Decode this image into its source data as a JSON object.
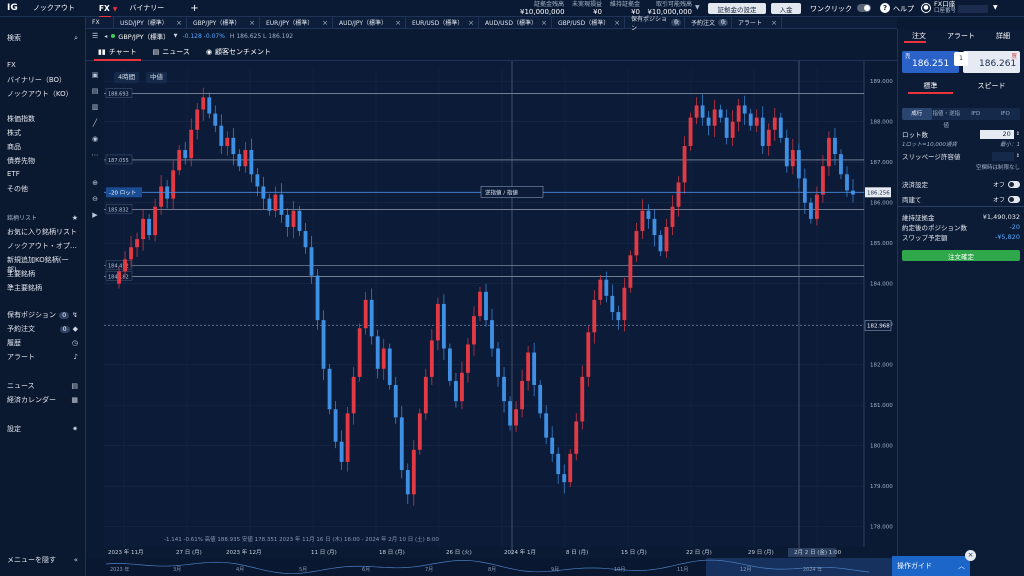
{
  "top": {
    "logo": "IG",
    "knockout": "ノックアウト",
    "fx": "FX",
    "binary": "バイナリー",
    "plus": "+",
    "acct_labels": [
      "証拠金残高",
      "未実現損益",
      "維持証拠金",
      "取引可能残高"
    ],
    "acct_values": [
      "¥10,000,000",
      "¥0",
      "¥0",
      "¥10,000,000"
    ],
    "margin_settings": "証拠金の設定",
    "deposit": "入金",
    "oneclick": "ワンクリック",
    "help": "ヘルプ",
    "account_label": "FX口座",
    "account_sub": "口座番号"
  },
  "tabs": [
    {
      "label": "FX"
    },
    {
      "label": "USD/JPY（標準）"
    },
    {
      "label": "GBP/JPY（標準）"
    },
    {
      "label": "EUR/JPY（標準）"
    },
    {
      "label": "AUD/JPY（標準）"
    },
    {
      "label": "EUR/USD（標準）"
    },
    {
      "label": "AUD/USD（標準）"
    },
    {
      "label": "GBP/USD（標準）"
    },
    {
      "label": "保有ポジション",
      "count": "0"
    },
    {
      "label": "予約注文",
      "count": "0"
    },
    {
      "label": "アラート"
    }
  ],
  "instrument": {
    "name": "GBP/JPY（標準）",
    "change": "-0.128  -0.07%",
    "hl": "H 186.625  L 186.192"
  },
  "subtabs": {
    "chart": "チャート",
    "news": "ニュース",
    "sentiment": "顧客センチメント"
  },
  "chart_controls": {
    "timeframe": "4時間",
    "type": "中値"
  },
  "sidebar": {
    "search": "検索",
    "fx": "FX",
    "binary": "バイナリー（BO）",
    "knockout": "ノックアウト（KO）",
    "stockindex": "株価指数",
    "stock": "株式",
    "commodity": "商品",
    "bond": "債券先物",
    "etf": "ETF",
    "other": "その他",
    "watch_head": "銘柄リスト",
    "fav": "お気に入り銘柄リスト",
    "ko_op": "ノックアウト・オプ…",
    "new_ko": "新規追加KO銘柄(一部)",
    "main": "主要銘柄",
    "sub": "準主要銘柄",
    "positions": "保有ポジション",
    "positions_count": "0",
    "orders": "予約注文",
    "orders_count": "0",
    "history": "履歴",
    "alert": "アラート",
    "news": "ニュース",
    "calendar": "経済カレンダー",
    "settings": "設定",
    "hide_menu": "メニューを隠す"
  },
  "right": {
    "tab_order": "注文",
    "tab_alert": "アラート",
    "tab_detail": "詳細",
    "sell_label": "売",
    "buy_label": "買",
    "sell_price": "186.251",
    "buy_price": "186.261",
    "spread": "1",
    "mode_std": "標準",
    "mode_speed": "スピード",
    "order_types": [
      "成行",
      "指値・逆指値",
      "IFD",
      "IFO"
    ],
    "lot_label": "ロット数",
    "lot_value": "20",
    "lot_hint": "1ロット=10,000通貨",
    "lot_min": "最小：1",
    "slippage_label": "スリッページ許容値",
    "slippage_hint": "空欄時は制限なし",
    "settle_label": "決済設定",
    "settle_value": "オフ",
    "both_label": "両建て",
    "both_value": "オフ",
    "margin_label": "維持証拠金",
    "margin_value": "¥1,490,032",
    "pos_label": "約定後のポジション数",
    "pos_value": "-20",
    "swap_label": "スワップ予定額",
    "swap_value": "-¥5,820",
    "confirm": "注文確定",
    "guide": "操作ガイド"
  },
  "chart_data": {
    "type": "candlestick",
    "price_ticks": [
      "189.000",
      "188.000",
      "187.000",
      "186.000",
      "185.000",
      "184.000",
      "183.000",
      "182.000",
      "181.000",
      "180.000",
      "179.000",
      "178.000"
    ],
    "levels": [
      {
        "label": "188.693",
        "value": 188.693
      },
      {
        "label": "187.055",
        "value": 187.055
      },
      {
        "label": "185.832",
        "value": 185.832
      },
      {
        "label": "184.452",
        "value": 184.452
      },
      {
        "label": "184.182",
        "value": 184.182
      }
    ],
    "current_price": "186.256",
    "current_value": 186.256,
    "dashed_price": "182.968",
    "dashed_value": 182.968,
    "position_tag": "-20 ロット",
    "position_center": "逆指値 / 指値",
    "x_labels": [
      "2023 年 11月",
      "27 日 (月)",
      "2023 年 12月",
      "11 日 (月)",
      "18 日 (月)",
      "26 日 (火)",
      "2024 年 1月",
      "8 日 (月)",
      "15 日 (月)",
      "22 日 (月)",
      "29 日 (月)",
      "2月 2 日 (金) 1:00"
    ],
    "nav_labels": [
      "2023 年",
      "3月",
      "4月",
      "5月",
      "6月",
      "7月",
      "8月",
      "9月",
      "10月",
      "11月",
      "12月",
      "2024 年"
    ],
    "footer_stats": "-1.141  -0.61%  高値 188.935  安値 178.351  2023 年 11月 16 日 (木) 16:00 - 2024 年 2月 10 日 (土) 8:00",
    "ohlc_closes": [
      184.3,
      184.6,
      184.9,
      185.1,
      185.6,
      185.2,
      185.9,
      186.4,
      186.1,
      186.8,
      187.3,
      187.1,
      187.8,
      188.3,
      188.6,
      188.2,
      187.9,
      187.4,
      187.6,
      187.2,
      186.9,
      187.3,
      186.7,
      186.4,
      186.1,
      185.8,
      186.2,
      185.7,
      185.4,
      185.8,
      185.3,
      184.9,
      184.2,
      183.1,
      181.9,
      180.9,
      180.1,
      179.6,
      180.8,
      181.7,
      182.9,
      183.6,
      182.7,
      181.9,
      182.4,
      181.5,
      180.7,
      179.4,
      178.8,
      179.9,
      180.8,
      181.7,
      182.6,
      183.5,
      182.4,
      181.6,
      181.1,
      181.8,
      182.5,
      183.2,
      183.8,
      183.1,
      182.4,
      181.7,
      181.1,
      180.5,
      180.9,
      181.6,
      182.3,
      181.5,
      180.8,
      180.2,
      179.8,
      179.3,
      179.1,
      179.8,
      180.6,
      181.7,
      182.8,
      183.6,
      184.1,
      183.7,
      183.3,
      183.1,
      183.9,
      184.7,
      185.3,
      185.8,
      185.6,
      185.2,
      184.8,
      185.4,
      185.9,
      186.5,
      187.4,
      188.1,
      188.4,
      188.1,
      187.9,
      188.3,
      188.1,
      187.6,
      188.0,
      188.4,
      188.2,
      187.9,
      188.1,
      187.4,
      187.8,
      188.1,
      187.6,
      186.9,
      187.3,
      186.6,
      186.0,
      185.6,
      186.2,
      186.9,
      187.6,
      187.2,
      186.7,
      186.3,
      186.2
    ]
  }
}
